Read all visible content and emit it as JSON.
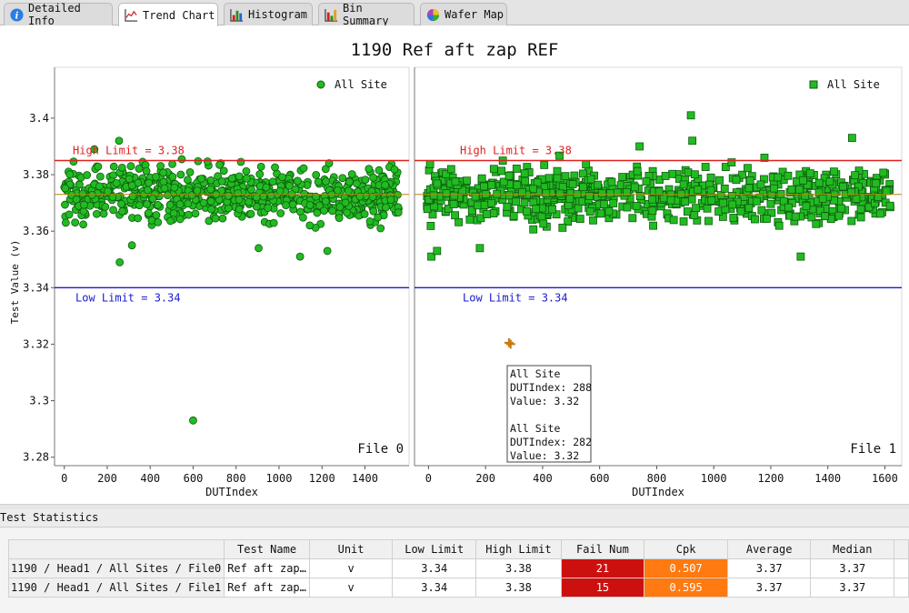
{
  "tabs": [
    {
      "label": "Detailed Info",
      "icon": "info-icon",
      "active": false
    },
    {
      "label": "Trend Chart",
      "icon": "trend-chart-icon",
      "active": true
    },
    {
      "label": "Histogram",
      "icon": "histogram-icon",
      "active": false
    },
    {
      "label": "Bin Summary",
      "icon": "bin-summary-icon",
      "active": false
    },
    {
      "label": "Wafer Map",
      "icon": "wafer-map-icon",
      "active": false
    }
  ],
  "chart_data": {
    "type": "scatter",
    "title": "1190 Ref aft zap REF",
    "ylabel": "Test Value (v)",
    "yticks": [
      "3.28",
      "3.3",
      "3.32",
      "3.34",
      "3.36",
      "3.38",
      "3.4"
    ],
    "ylim": [
      3.277,
      3.418
    ],
    "high_limit": 3.385,
    "low_limit": 3.34,
    "high_limit_label": "High Limit = 3.38",
    "low_limit_label": "Low Limit = 3.34",
    "median_line": 3.373,
    "panels": [
      {
        "file_label": "File 0",
        "xlabel": "DUTIndex",
        "xlim": [
          -20,
          1580
        ],
        "xticks": [
          "0",
          "200",
          "400",
          "600",
          "800",
          "1000",
          "1200",
          "1400"
        ],
        "legend": "All Site",
        "marker": "circle",
        "color": "#22bb22",
        "point_count": 1590,
        "center": 3.373,
        "spread": 0.0085,
        "outliers": [
          {
            "x": 600,
            "y": 3.293
          },
          {
            "x": 258,
            "y": 3.349
          },
          {
            "x": 1098,
            "y": 3.351
          },
          {
            "x": 905,
            "y": 3.354
          },
          {
            "x": 1225,
            "y": 3.353
          },
          {
            "x": 315,
            "y": 3.355
          },
          {
            "x": 255,
            "y": 3.392
          },
          {
            "x": 140,
            "y": 3.389
          }
        ]
      },
      {
        "file_label": "File 1",
        "xlabel": "DUTIndex",
        "xlim": [
          -30,
          1640
        ],
        "xticks": [
          "0",
          "200",
          "400",
          "600",
          "800",
          "1000",
          "1200",
          "1400",
          "1600"
        ],
        "legend": "All Site",
        "marker": "square",
        "color": "#22bb22",
        "point_count": 1630,
        "center": 3.373,
        "spread": 0.0085,
        "outliers": [
          {
            "x": 920,
            "y": 3.401
          },
          {
            "x": 925,
            "y": 3.392
          },
          {
            "x": 1305,
            "y": 3.351
          },
          {
            "x": 180,
            "y": 3.354
          },
          {
            "x": 10,
            "y": 3.351
          },
          {
            "x": 30,
            "y": 3.353
          },
          {
            "x": 1485,
            "y": 3.393
          },
          {
            "x": 740,
            "y": 3.39
          },
          {
            "x": 288,
            "y": 3.32
          },
          {
            "x": 282,
            "y": 3.3205
          }
        ]
      }
    ],
    "tooltip": [
      "All Site",
      "DUTIndex: 288",
      "Value: 3.32",
      "",
      "All Site",
      "DUTIndex: 282",
      "Value: 3.32"
    ]
  },
  "stats": {
    "title": "Test Statistics",
    "headers": [
      "",
      "Test Name",
      "Unit",
      "Low Limit",
      "High Limit",
      "Fail Num",
      "Cpk",
      "Average",
      "Median"
    ],
    "rows": [
      {
        "label": "1190 / Head1 / All Sites / File0",
        "test_name": "Ref aft zap…",
        "unit": "v",
        "low": "3.34",
        "high": "3.38",
        "fail": "21",
        "cpk": "0.507",
        "avg": "3.37",
        "median": "3.37"
      },
      {
        "label": "1190 / Head1 / All Sites / File1",
        "test_name": "Ref aft zap…",
        "unit": "v",
        "low": "3.34",
        "high": "3.38",
        "fail": "15",
        "cpk": "0.595",
        "avg": "3.37",
        "median": "3.37"
      }
    ],
    "colors": {
      "fail": "#cc1010",
      "cpk": "#ff7a10"
    }
  }
}
